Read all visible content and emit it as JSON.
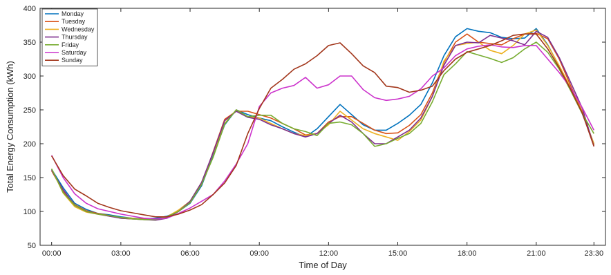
{
  "chart_data": {
    "type": "line",
    "title": "",
    "xlabel": "Time of Day",
    "ylabel": "Total Energy Consumption (kWh)",
    "ylim": [
      50,
      400
    ],
    "xlim": [
      -0.5,
      24
    ],
    "y_ticks": [
      50,
      100,
      150,
      200,
      250,
      300,
      350,
      400
    ],
    "x_ticks": [
      {
        "value": 0,
        "label": "00:00"
      },
      {
        "value": 3,
        "label": "03:00"
      },
      {
        "value": 6,
        "label": "06:00"
      },
      {
        "value": 9,
        "label": "09:00"
      },
      {
        "value": 12,
        "label": "12:00"
      },
      {
        "value": 15,
        "label": "15:00"
      },
      {
        "value": 18,
        "label": "18:00"
      },
      {
        "value": 21,
        "label": "21:00"
      },
      {
        "value": 23.5,
        "label": "23:30"
      }
    ],
    "grid": false,
    "legend_position": "top-left",
    "x": [
      0,
      0.5,
      1,
      1.5,
      2,
      2.5,
      3,
      3.5,
      4,
      4.5,
      5,
      5.5,
      6,
      6.5,
      7,
      7.5,
      8,
      8.5,
      9,
      9.5,
      10,
      10.5,
      11,
      11.5,
      12,
      12.5,
      13,
      13.5,
      14,
      14.5,
      15,
      15.5,
      16,
      16.5,
      17,
      17.5,
      18,
      18.5,
      19,
      19.5,
      20,
      20.5,
      21,
      21.5,
      22,
      22.5,
      23,
      23.5
    ],
    "series": [
      {
        "name": "Monday",
        "color": "#0072BD",
        "values": [
          162,
          135,
          112,
          103,
          97,
          95,
          92,
          90,
          89,
          90,
          93,
          100,
          112,
          138,
          183,
          228,
          250,
          243,
          238,
          234,
          225,
          217,
          210,
          222,
          240,
          258,
          243,
          228,
          220,
          220,
          230,
          242,
          258,
          290,
          330,
          358,
          370,
          366,
          364,
          357,
          355,
          356,
          370,
          346,
          314,
          280,
          244,
          200
        ]
      },
      {
        "name": "Tuesday",
        "color": "#D95319",
        "values": [
          160,
          130,
          110,
          101,
          97,
          94,
          90,
          89,
          89,
          88,
          91,
          100,
          113,
          140,
          188,
          236,
          248,
          248,
          243,
          238,
          230,
          222,
          213,
          215,
          232,
          240,
          240,
          230,
          220,
          215,
          216,
          227,
          243,
          275,
          320,
          350,
          362,
          350,
          348,
          346,
          355,
          362,
          363,
          355,
          325,
          285,
          247,
          198
        ]
      },
      {
        "name": "Wednesday",
        "color": "#EDB120",
        "values": [
          163,
          127,
          107,
          99,
          96,
          93,
          91,
          90,
          88,
          88,
          92,
          102,
          115,
          143,
          186,
          230,
          250,
          240,
          238,
          230,
          222,
          215,
          212,
          215,
          228,
          248,
          235,
          222,
          215,
          210,
          205,
          218,
          235,
          270,
          322,
          345,
          348,
          350,
          338,
          333,
          345,
          362,
          368,
          345,
          315,
          282,
          246,
          200
        ]
      },
      {
        "name": "Thursday",
        "color": "#7E2F8E",
        "values": [
          161,
          132,
          109,
          100,
          96,
          93,
          90,
          89,
          88,
          87,
          90,
          100,
          115,
          143,
          187,
          234,
          248,
          239,
          236,
          228,
          222,
          215,
          210,
          215,
          230,
          242,
          232,
          215,
          200,
          200,
          210,
          220,
          238,
          270,
          316,
          345,
          350,
          349,
          360,
          356,
          352,
          346,
          366,
          357,
          327,
          290,
          252,
          196
        ]
      },
      {
        "name": "Friday",
        "color": "#77AC30",
        "values": [
          163,
          128,
          109,
          100,
          96,
          94,
          91,
          89,
          88,
          88,
          92,
          100,
          113,
          140,
          180,
          229,
          250,
          240,
          242,
          242,
          230,
          222,
          218,
          212,
          230,
          232,
          228,
          215,
          196,
          200,
          208,
          215,
          230,
          262,
          302,
          318,
          336,
          331,
          326,
          320,
          327,
          340,
          350,
          335,
          310,
          278,
          244,
          215
        ]
      },
      {
        "name": "Saturday",
        "color": "#CC33CC",
        "values": [
          183,
          150,
          126,
          112,
          104,
          100,
          96,
          93,
          90,
          89,
          90,
          97,
          105,
          115,
          125,
          145,
          170,
          200,
          255,
          275,
          282,
          286,
          298,
          282,
          287,
          300,
          300,
          280,
          268,
          264,
          266,
          270,
          281,
          300,
          312,
          330,
          340,
          344,
          346,
          343,
          342,
          345,
          345,
          325,
          305,
          282,
          253,
          220
        ]
      },
      {
        "name": "Sunday",
        "color": "#A2361B",
        "values": [
          182,
          153,
          133,
          123,
          112,
          106,
          101,
          98,
          95,
          92,
          92,
          96,
          102,
          110,
          125,
          142,
          168,
          215,
          252,
          282,
          295,
          310,
          318,
          330,
          345,
          349,
          333,
          315,
          305,
          285,
          283,
          276,
          279,
          285,
          308,
          325,
          335,
          340,
          345,
          352,
          360,
          362,
          362,
          340,
          312,
          280,
          245,
          196
        ]
      }
    ]
  }
}
